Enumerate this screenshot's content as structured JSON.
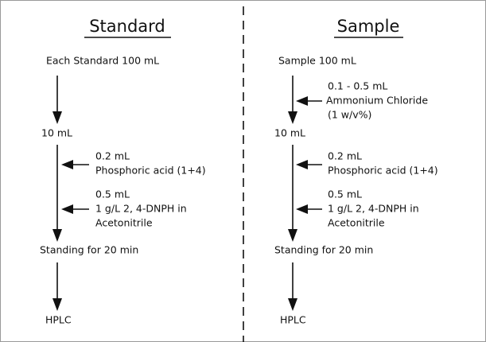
{
  "columns": [
    {
      "title": "Standard",
      "nodes": [
        "Each Standard 100 mL",
        "10 mL",
        "Standing for 20 min",
        "HPLC"
      ],
      "additions": [
        [
          "0.2 mL",
          "Phosphoric acid (1+4)"
        ],
        [
          "0.5 mL",
          "1 g/L 2, 4-DNPH in",
          "Acetonitrile"
        ]
      ]
    },
    {
      "title": "Sample",
      "nodes": [
        "Sample 100 mL",
        "10 mL",
        "Standing for 20 min",
        "HPLC"
      ],
      "additions": [
        [
          "0.1 - 0.5 mL",
          "Ammonium Chloride",
          "(1 w/v%)"
        ],
        [
          "0.2 mL",
          "Phosphoric acid (1+4)"
        ],
        [
          "0.5 mL",
          "1 g/L 2, 4-DNPH in",
          "Acetonitrile"
        ]
      ]
    }
  ]
}
